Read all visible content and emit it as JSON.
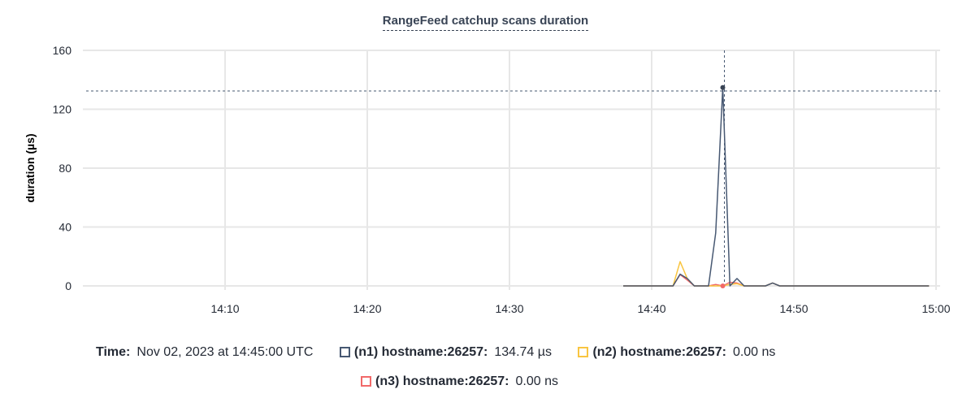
{
  "chart_data": {
    "type": "line",
    "title": "RangeFeed catchup scans duration",
    "ylabel": "duration (µs)",
    "xlabel": "",
    "ylim": [
      0,
      160
    ],
    "xlim": [
      "14:00",
      "15:00"
    ],
    "yticks": [
      0,
      40,
      80,
      120,
      160
    ],
    "xticks": [
      "14:10",
      "14:20",
      "14:30",
      "14:40",
      "14:50",
      "15:00"
    ],
    "grid": true,
    "x": [
      "14:38:00",
      "14:38:30",
      "14:39:00",
      "14:39:30",
      "14:40:00",
      "14:40:30",
      "14:41:00",
      "14:41:30",
      "14:42:00",
      "14:42:30",
      "14:43:00",
      "14:43:30",
      "14:44:00",
      "14:44:30",
      "14:45:00",
      "14:45:30",
      "14:46:00",
      "14:46:30",
      "14:47:00",
      "14:47:30",
      "14:48:00",
      "14:48:30",
      "14:49:00",
      "14:49:30",
      "14:50:00",
      "14:52:00",
      "14:54:00",
      "14:56:00",
      "14:58:00",
      "14:59:30"
    ],
    "series": [
      {
        "name": "(n1) hostname:26257",
        "color": "#475872",
        "values": [
          0,
          0,
          0,
          0,
          0,
          0,
          0,
          0,
          8,
          5,
          0,
          0,
          0,
          36,
          134.74,
          0,
          5,
          0,
          0,
          0,
          0,
          2,
          0,
          0,
          0,
          0,
          0,
          0,
          0,
          0
        ]
      },
      {
        "name": "(n2) hostname:26257",
        "color": "#f9c540",
        "values": [
          0,
          0,
          0,
          0,
          0,
          0,
          0,
          0,
          16.5,
          5,
          0,
          0,
          0,
          0,
          0,
          1,
          1.5,
          0,
          0,
          0,
          0,
          2,
          0,
          0,
          0,
          0,
          0,
          0,
          0,
          0
        ]
      },
      {
        "name": "(n3) hostname:26257",
        "color": "#f16969",
        "values": [
          0,
          0,
          0,
          0,
          0,
          0,
          0,
          0,
          7.7,
          4,
          0,
          0,
          0,
          1,
          0,
          2.5,
          2,
          0,
          0,
          0,
          0,
          2,
          0,
          0,
          0,
          0,
          0,
          0,
          0,
          0
        ]
      }
    ],
    "hover": {
      "x": "14:45:00",
      "y": 134.74
    }
  },
  "tooltip": {
    "time_label": "Time:",
    "time_value": "Nov 02, 2023 at 14:45:00 UTC",
    "items": [
      {
        "label": "(n1) hostname:26257:",
        "value": "134.74 µs",
        "color": "#475872"
      },
      {
        "label": "(n2) hostname:26257:",
        "value": "0.00 ns",
        "color": "#f9c540"
      },
      {
        "label": "(n3) hostname:26257:",
        "value": "0.00 ns",
        "color": "#f16969"
      }
    ]
  }
}
